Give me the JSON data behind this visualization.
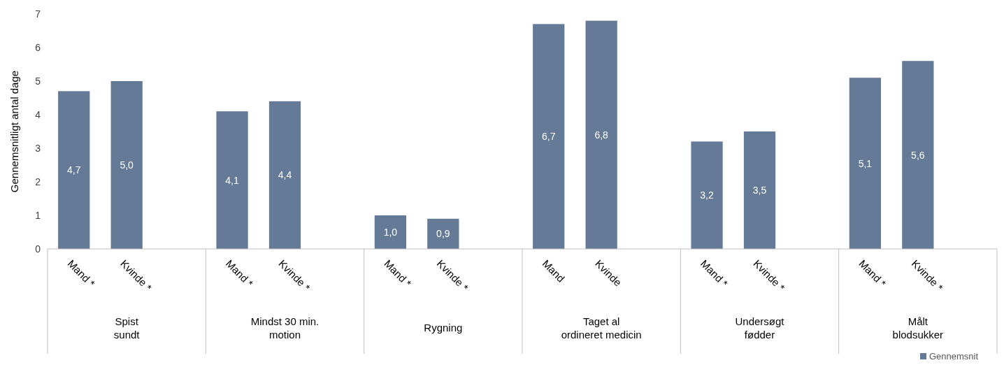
{
  "chart_data": {
    "type": "bar",
    "ylabel": "Gennemsnitligt antal dage",
    "categories": [
      "Mand *",
      "Kvinde *",
      null,
      "Mand *",
      "Kvinde *",
      null,
      "Mand *",
      "Kvinde *",
      null,
      "Mand",
      "Kvinde",
      null,
      "Mand *",
      "Kvinde *",
      null,
      "Mand *",
      "Kvinde *",
      null
    ],
    "series": [
      {
        "name": "Gennemsnit",
        "color": "#647a96",
        "values": [
          4.7,
          5.0,
          null,
          4.1,
          4.4,
          null,
          1.0,
          0.9,
          null,
          6.7,
          6.8,
          null,
          3.2,
          3.5,
          null,
          5.1,
          5.6,
          null
        ],
        "value_labels": [
          "4,7",
          "5,0",
          null,
          "4,1",
          "4,4",
          null,
          "1,0",
          "0,9",
          null,
          "6,7",
          "6,8",
          null,
          "3,2",
          "3,5",
          null,
          "5,1",
          "5,6",
          null
        ]
      }
    ],
    "annotations": [
      "Spist\nsundt",
      "Mindst 30 min.\nmotion",
      "Rygning",
      "Taget al\nordineret medicin",
      "Undersøgt\nfødder",
      "Målt\nblodsukker"
    ],
    "ylim": [
      0,
      7
    ],
    "yticks": [
      0,
      1,
      2,
      3,
      4,
      5,
      6,
      7
    ],
    "grid": false,
    "legend": "bottom right"
  }
}
